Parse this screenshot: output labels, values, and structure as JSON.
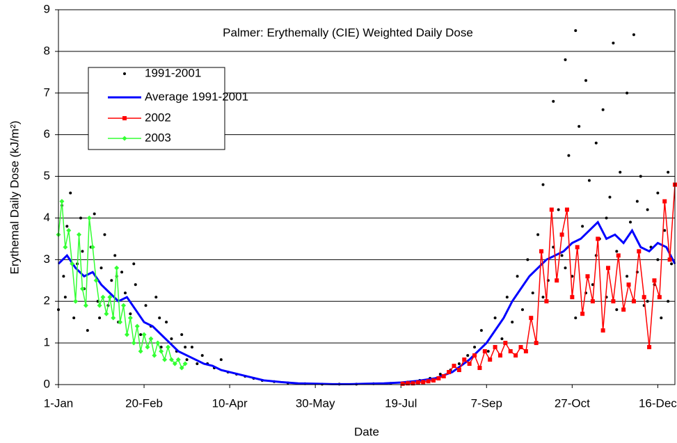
{
  "chart_data": {
    "type": "scatter",
    "title": "Palmer: Erythemally (CIE) Weighted Daily Dose",
    "x_label": "Date",
    "y_label": "Erythemal Daily Dose (kJ/m²)",
    "xlim": [
      1,
      361
    ],
    "xticks": [
      {
        "value": 1,
        "label": "1-Jan"
      },
      {
        "value": 51,
        "label": "20-Feb"
      },
      {
        "value": 101,
        "label": "10-Apr"
      },
      {
        "value": 151,
        "label": "30-May"
      },
      {
        "value": 201,
        "label": "19-Jul"
      },
      {
        "value": 251,
        "label": "7-Sep"
      },
      {
        "value": 301,
        "label": "27-Oct"
      },
      {
        "value": 351,
        "label": "16-Dec"
      }
    ],
    "ylim": [
      0,
      9
    ],
    "yticks": [
      0,
      1,
      2,
      3,
      4,
      5,
      6,
      7,
      8,
      9
    ],
    "grid": true,
    "legend": "upper left",
    "series": [
      {
        "name": "1991-2001",
        "color": "#000000",
        "line": false,
        "marker": "circle",
        "x": [
          1,
          3,
          4,
          6,
          8,
          10,
          12,
          14,
          16,
          18,
          20,
          22,
          24,
          26,
          28,
          30,
          32,
          34,
          36,
          38,
          40,
          43,
          46,
          49,
          52,
          55,
          58,
          61,
          64,
          67,
          70,
          73,
          76,
          79,
          82,
          85,
          88,
          92,
          96,
          100,
          105,
          110,
          115,
          120,
          127,
          135,
          145,
          155,
          165,
          175,
          185,
          195,
          205,
          212,
          218,
          224,
          230,
          235,
          240,
          244,
          248,
          252,
          256,
          260,
          263,
          266,
          269,
          272,
          275,
          278,
          281,
          284,
          287,
          290,
          293,
          295,
          297,
          299,
          301,
          303,
          305,
          307,
          309,
          311,
          313,
          315,
          317,
          319,
          321,
          323,
          325,
          327,
          329,
          331,
          333,
          335,
          337,
          339,
          341,
          343,
          345,
          347,
          349,
          351,
          353,
          355,
          357,
          359,
          284,
          290,
          297,
          303,
          309,
          315,
          321,
          327,
          333,
          339,
          345,
          351,
          357,
          5,
          15,
          25,
          35,
          45,
          60,
          75
        ],
        "values": [
          1.8,
          4.3,
          2.6,
          3.8,
          4.6,
          1.6,
          2.9,
          4.0,
          2.3,
          1.3,
          3.3,
          4.1,
          2.0,
          2.8,
          3.6,
          1.9,
          2.5,
          3.1,
          1.5,
          2.7,
          2.2,
          1.7,
          2.4,
          1.2,
          1.9,
          1.4,
          2.1,
          0.9,
          1.5,
          1.1,
          0.8,
          1.2,
          0.6,
          0.9,
          0.5,
          0.7,
          0.5,
          0.4,
          0.6,
          0.3,
          0.25,
          0.2,
          0.15,
          0.1,
          0.07,
          0.04,
          0.02,
          0.01,
          0.01,
          0.01,
          0.02,
          0.03,
          0.06,
          0.1,
          0.15,
          0.25,
          0.35,
          0.5,
          0.7,
          0.9,
          1.3,
          0.8,
          1.6,
          1.1,
          2.1,
          1.5,
          2.6,
          1.8,
          3.0,
          2.2,
          3.6,
          4.8,
          2.5,
          6.8,
          4.2,
          3.1,
          7.8,
          5.5,
          2.6,
          8.5,
          6.2,
          3.8,
          7.3,
          4.9,
          2.4,
          5.8,
          3.5,
          6.6,
          2.1,
          4.5,
          8.2,
          3.2,
          5.1,
          1.8,
          7.0,
          3.9,
          8.4,
          2.7,
          5.0,
          1.9,
          4.2,
          3.3,
          2.4,
          4.6,
          1.6,
          3.7,
          5.1,
          2.9,
          2.1,
          3.3,
          2.8,
          1.6,
          2.2,
          3.1,
          4.0,
          1.8,
          2.6,
          4.4,
          2.0,
          3.0,
          2.0,
          2.1,
          3.2,
          1.6,
          2.6,
          2.9,
          1.6,
          0.9
        ]
      },
      {
        "name": "Average 1991-2001",
        "color": "#0000ff",
        "line": true,
        "marker": "none",
        "x": [
          1,
          6,
          11,
          16,
          21,
          26,
          31,
          36,
          41,
          46,
          51,
          56,
          61,
          66,
          71,
          76,
          81,
          86,
          91,
          96,
          101,
          111,
          121,
          131,
          141,
          151,
          161,
          171,
          181,
          191,
          201,
          211,
          221,
          231,
          236,
          241,
          246,
          251,
          256,
          261,
          266,
          271,
          276,
          281,
          286,
          291,
          296,
          301,
          306,
          311,
          316,
          321,
          326,
          331,
          336,
          341,
          346,
          351,
          356,
          361
        ],
        "values": [
          2.9,
          3.1,
          2.8,
          2.6,
          2.7,
          2.4,
          2.2,
          2.0,
          2.1,
          1.8,
          1.5,
          1.4,
          1.2,
          1.0,
          0.8,
          0.7,
          0.6,
          0.5,
          0.45,
          0.35,
          0.3,
          0.2,
          0.1,
          0.06,
          0.03,
          0.02,
          0.01,
          0.01,
          0.02,
          0.03,
          0.05,
          0.09,
          0.15,
          0.3,
          0.45,
          0.6,
          0.8,
          1.0,
          1.3,
          1.6,
          2.0,
          2.3,
          2.6,
          2.8,
          3.0,
          3.1,
          3.2,
          3.4,
          3.5,
          3.7,
          3.9,
          3.5,
          3.6,
          3.4,
          3.7,
          3.3,
          3.2,
          3.4,
          3.3,
          2.9
        ]
      },
      {
        "name": "2002",
        "color": "#ff0000",
        "line": true,
        "marker": "square",
        "x": [
          202,
          205,
          208,
          211,
          214,
          217,
          220,
          223,
          226,
          229,
          232,
          235,
          238,
          241,
          244,
          247,
          250,
          253,
          256,
          259,
          262,
          265,
          268,
          271,
          274,
          277,
          280,
          283,
          286,
          289,
          292,
          295,
          298,
          301,
          304,
          307,
          310,
          313,
          316,
          319,
          322,
          325,
          328,
          331,
          334,
          337,
          340,
          343,
          346,
          349,
          352,
          355,
          358,
          361
        ],
        "values": [
          0.02,
          0.03,
          0.03,
          0.05,
          0.06,
          0.08,
          0.1,
          0.15,
          0.2,
          0.3,
          0.45,
          0.35,
          0.6,
          0.5,
          0.7,
          0.4,
          0.8,
          0.6,
          0.9,
          0.7,
          1.0,
          0.8,
          0.7,
          0.9,
          0.8,
          1.6,
          1.0,
          3.2,
          2.0,
          4.2,
          2.5,
          3.6,
          4.2,
          2.1,
          3.3,
          1.7,
          2.6,
          2.0,
          3.5,
          1.3,
          2.8,
          2.0,
          3.1,
          1.8,
          2.4,
          2.0,
          3.2,
          2.1,
          0.9,
          2.5,
          2.1,
          4.4,
          3.0,
          4.8
        ]
      },
      {
        "name": "2003",
        "color": "#33ff33",
        "line": true,
        "marker": "diamond",
        "x": [
          1,
          3,
          5,
          7,
          9,
          11,
          13,
          15,
          17,
          19,
          21,
          23,
          25,
          27,
          29,
          31,
          33,
          35,
          37,
          39,
          41,
          43,
          45,
          47,
          49,
          51,
          53,
          55,
          57,
          59,
          61,
          63,
          65,
          67,
          69,
          71,
          73,
          75
        ],
        "values": [
          3.6,
          4.4,
          3.3,
          3.7,
          2.9,
          2.0,
          3.6,
          2.3,
          1.9,
          4.0,
          3.3,
          2.5,
          1.9,
          2.1,
          1.7,
          2.1,
          1.6,
          2.8,
          1.5,
          1.9,
          1.2,
          1.6,
          1.0,
          1.4,
          0.8,
          1.2,
          0.9,
          1.1,
          0.7,
          1.0,
          0.8,
          0.6,
          0.9,
          0.6,
          0.5,
          0.6,
          0.4,
          0.5
        ]
      }
    ]
  }
}
